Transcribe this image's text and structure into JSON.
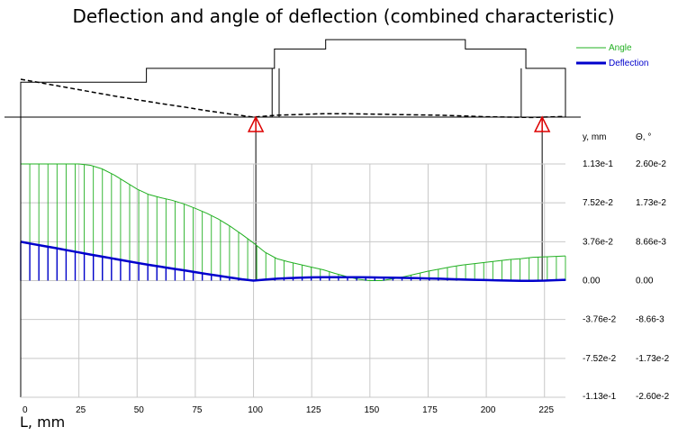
{
  "chart_data": {
    "type": "line",
    "title": "Deflection and angle of deflection (combined characteristic)",
    "xlabel": "L, mm",
    "xlim": [
      0,
      234
    ],
    "x_ticks": [
      0,
      25,
      50,
      75,
      100,
      125,
      150,
      175,
      200,
      225
    ],
    "y_axis": {
      "label": "y, mm",
      "ticks": [
        "1.13e-1",
        "7.52e-2",
        "3.76e-2",
        "0.00",
        "-3.76e-2",
        "-7.52e-2",
        "-1.13e-1"
      ],
      "ylim": [
        -0.113,
        0.113
      ]
    },
    "theta_axis": {
      "label": "Θ, °",
      "ticks": [
        "2.60e-2",
        "1.73e-2",
        "8.66e-3",
        "0.00",
        "-8.66-3",
        "-1.73e-2",
        "-2.60e-2"
      ],
      "ylim": [
        -0.026,
        0.026
      ]
    },
    "grid": true,
    "legend": {
      "placement": "top-right",
      "entries": [
        {
          "label": "Angle",
          "color": "#22b022"
        },
        {
          "label": "Deflection",
          "color": "#0000cc"
        }
      ]
    },
    "series": [
      {
        "name": "Angle",
        "color": "#22b022",
        "axis": "theta",
        "x": [
          0,
          5,
          10,
          15,
          20,
          25,
          30,
          35,
          40,
          45,
          50,
          55,
          60,
          65,
          70,
          75,
          80,
          85,
          90,
          95,
          100,
          105,
          110,
          115,
          120,
          125,
          130,
          135,
          140,
          145,
          150,
          155,
          160,
          165,
          170,
          175,
          180,
          185,
          190,
          195,
          200,
          205,
          210,
          215,
          220,
          225,
          230,
          234
        ],
        "values": [
          0.026,
          0.026,
          0.026,
          0.026,
          0.026,
          0.026,
          0.0257,
          0.0249,
          0.0236,
          0.022,
          0.0204,
          0.0192,
          0.0185,
          0.0179,
          0.0171,
          0.0161,
          0.015,
          0.0137,
          0.0121,
          0.0103,
          0.0084,
          0.0063,
          0.0049,
          0.0042,
          0.0036,
          0.003,
          0.0024,
          0.0016,
          0.0009,
          0.0003,
          0.0,
          0.0,
          0.0004,
          0.0009,
          0.0015,
          0.0021,
          0.0026,
          0.0031,
          0.0035,
          0.0038,
          0.0041,
          0.0044,
          0.0047,
          0.0049,
          0.0052,
          0.0053,
          0.0054,
          0.0055
        ]
      },
      {
        "name": "Deflection",
        "color": "#0000cc",
        "axis": "y",
        "x": [
          0,
          5,
          10,
          15,
          20,
          25,
          30,
          35,
          40,
          45,
          50,
          55,
          60,
          65,
          70,
          75,
          80,
          85,
          90,
          95,
          100,
          105,
          110,
          115,
          120,
          125,
          130,
          135,
          140,
          145,
          150,
          155,
          160,
          165,
          170,
          175,
          180,
          185,
          190,
          195,
          200,
          205,
          210,
          215,
          220,
          225,
          230,
          234
        ],
        "values": [
          0.0376,
          0.0355,
          0.0335,
          0.0315,
          0.0294,
          0.0273,
          0.0252,
          0.0232,
          0.0212,
          0.0192,
          0.0172,
          0.0153,
          0.0135,
          0.0117,
          0.01,
          0.0082,
          0.0064,
          0.0047,
          0.003,
          0.0013,
          0.0,
          0.001,
          0.0018,
          0.0024,
          0.0028,
          0.0031,
          0.0033,
          0.0033,
          0.0033,
          0.0032,
          0.0031,
          0.003,
          0.0028,
          0.0026,
          0.0024,
          0.0021,
          0.0018,
          0.0014,
          0.0011,
          0.0008,
          0.0005,
          0.0002,
          0.0,
          -0.0002,
          -0.0002,
          0.0,
          0.0004,
          0.0008
        ]
      }
    ],
    "beam": {
      "segments": [
        {
          "x0": 0,
          "x1": 54,
          "h": 0.45
        },
        {
          "x0": 54,
          "x1": 109,
          "h": 0.63
        },
        {
          "x0": 109,
          "x1": 131,
          "h": 0.88
        },
        {
          "x0": 131,
          "x1": 191,
          "h": 1.0
        },
        {
          "x0": 191,
          "x1": 217,
          "h": 0.88
        },
        {
          "x0": 217,
          "x1": 234,
          "h": 0.63
        }
      ],
      "inner_steps": [
        108,
        111,
        215
      ],
      "supports": [
        101,
        224
      ],
      "deflected_shape": {
        "x": [
          0,
          10,
          20,
          30,
          40,
          50,
          60,
          70,
          80,
          90,
          100,
          110,
          120,
          130,
          140,
          150,
          160,
          170,
          180,
          190,
          200,
          210,
          220,
          224,
          230,
          234
        ],
        "values": [
          1.0,
          0.89,
          0.78,
          0.67,
          0.56,
          0.46,
          0.36,
          0.27,
          0.17,
          0.08,
          0.0,
          0.05,
          0.07,
          0.09,
          0.09,
          0.08,
          0.07,
          0.06,
          0.05,
          0.03,
          0.01,
          0.0,
          -0.01,
          0.0,
          0.01,
          0.02
        ]
      }
    }
  }
}
